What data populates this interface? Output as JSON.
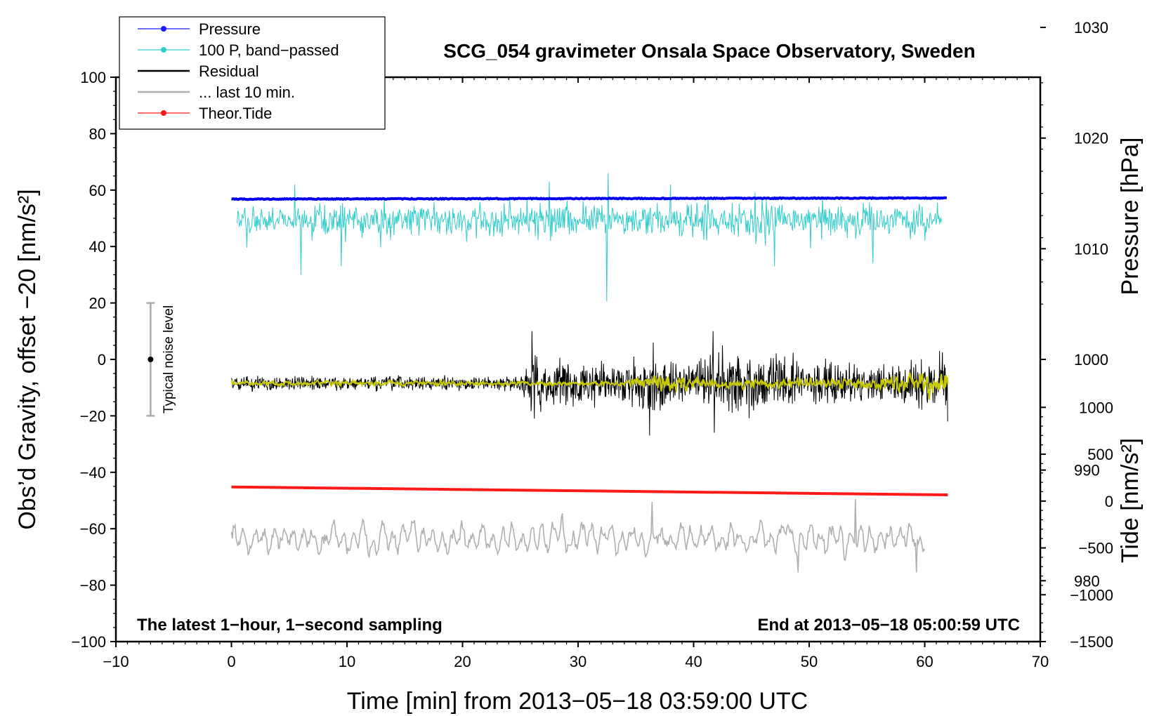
{
  "chart_data": {
    "type": "line",
    "title": "SCG_054 gravimeter Onsala Space Observatory, Sweden",
    "xlabel": "Time [min] from 2013−05−18 03:59:00 UTC",
    "ylabel_left": "Obs’d Gravity, offset −20 [nm/s²]",
    "ylabel_right_pressure": "Pressure [hPa]",
    "ylabel_right_tide": "Tide [nm/s²]",
    "xlim": [
      -10,
      70
    ],
    "ylim": [
      -100,
      100
    ],
    "x_ticks": [
      -10,
      0,
      10,
      20,
      30,
      40,
      50,
      60,
      70
    ],
    "x_tick_labels": [
      "−10",
      "0",
      "10",
      "20",
      "30",
      "40",
      "50",
      "60",
      "70"
    ],
    "y_ticks": [
      -100,
      -80,
      -60,
      -40,
      -20,
      0,
      20,
      40,
      60,
      80,
      100
    ],
    "y_tick_labels": [
      "−100",
      "−80",
      "−60",
      "−40",
      "−20",
      "0",
      "20",
      "40",
      "60",
      "80",
      "100"
    ],
    "pressure_axis": {
      "ticks": [
        980,
        990,
        1000,
        1010,
        1020,
        1030
      ],
      "tick_labels": [
        "980",
        "990",
        "1000",
        "1010",
        "1020",
        "1030"
      ],
      "left_value_at": [
        [
          0,
          1000
        ],
        [
          60,
          1015.3
        ]
      ]
    },
    "tide_axis": {
      "ticks": [
        -1500,
        -1000,
        -500,
        0,
        500,
        1000
      ],
      "tick_labels": [
        "−1500",
        "−1000",
        "−500",
        "0",
        "500",
        "1000"
      ],
      "left_value_at": [
        [
          -100,
          -1500
        ],
        [
          -17,
          1000
        ]
      ]
    },
    "legend": {
      "position": "top-left",
      "entries": [
        {
          "label": "Pressure",
          "color": "#1a1aff",
          "marker": true
        },
        {
          "label": "100 P, band−passed",
          "color": "#33cccc",
          "marker": true
        },
        {
          "label": "Residual",
          "color": "#000000",
          "marker": false
        },
        {
          "label": "... last 10 min.",
          "color": "#b0b0b0",
          "marker": false
        },
        {
          "label": "Theor.Tide",
          "color": "#ff1a1a",
          "marker": true
        }
      ]
    },
    "annotations": {
      "bottom_left": "The latest 1−hour, 1−second sampling",
      "bottom_right": "End at 2013−05−18 05:00:59 UTC",
      "noise_label": "Typical noise level",
      "noise_bar": {
        "x": -7,
        "center": 0,
        "low": -20,
        "high": 20
      }
    },
    "series": [
      {
        "name": "Pressure",
        "color": "#0000ee",
        "x_range": [
          0,
          62
        ],
        "y_start": 56.8,
        "y_end": 57.2,
        "noise": 0.3
      },
      {
        "name": "100 P, band−passed",
        "color": "#33cccc",
        "x_range": [
          0.5,
          61.5
        ],
        "center": 49.5,
        "amplitude": 4.5,
        "spikes": [
          [
            6,
            30
          ],
          [
            9.5,
            33
          ],
          [
            32.5,
            20.5
          ],
          [
            32.6,
            66
          ],
          [
            47,
            33
          ],
          [
            55.5,
            34
          ],
          [
            38,
            62
          ],
          [
            5.5,
            62
          ],
          [
            27.5,
            63
          ]
        ]
      },
      {
        "name": "Residual",
        "color": "#000000",
        "x_range": [
          0,
          62
        ],
        "center": -8.5,
        "envelope": [
          [
            0,
            2
          ],
          [
            25,
            2
          ],
          [
            26,
            8
          ],
          [
            31,
            5
          ],
          [
            36,
            8
          ],
          [
            40,
            5
          ],
          [
            42,
            9
          ],
          [
            55,
            5
          ],
          [
            62,
            8
          ]
        ],
        "spikes": [
          [
            26,
            10
          ],
          [
            26.2,
            -21
          ],
          [
            36.2,
            -27
          ],
          [
            36.5,
            6
          ],
          [
            41.7,
            10
          ],
          [
            41.8,
            -26
          ],
          [
            42.5,
            5
          ],
          [
            61.3,
            3
          ],
          [
            62,
            -22
          ]
        ]
      },
      {
        "name": "Residual smoothed",
        "color": "#c8c800",
        "x_range": [
          0,
          62
        ],
        "center": -8.5,
        "envelope": [
          [
            0,
            0.7
          ],
          [
            34,
            0.7
          ],
          [
            36,
            3
          ],
          [
            40,
            1.5
          ],
          [
            55,
            1.5
          ],
          [
            62,
            4
          ]
        ]
      },
      {
        "name": "... last 10 min.",
        "color": "#b0b0b0",
        "x_range": [
          0,
          60
        ],
        "center": -63.5,
        "amplitude": 5.5,
        "extremes": [
          [
            36.4,
            -50.5
          ],
          [
            54,
            -49.5
          ],
          [
            49,
            -75.5
          ],
          [
            59.3,
            -75.5
          ]
        ]
      },
      {
        "name": "Theor.Tide",
        "color": "#ff1a1a",
        "x_range": [
          0,
          62
        ],
        "y_start": -45.2,
        "y_end": -48.0
      }
    ]
  }
}
